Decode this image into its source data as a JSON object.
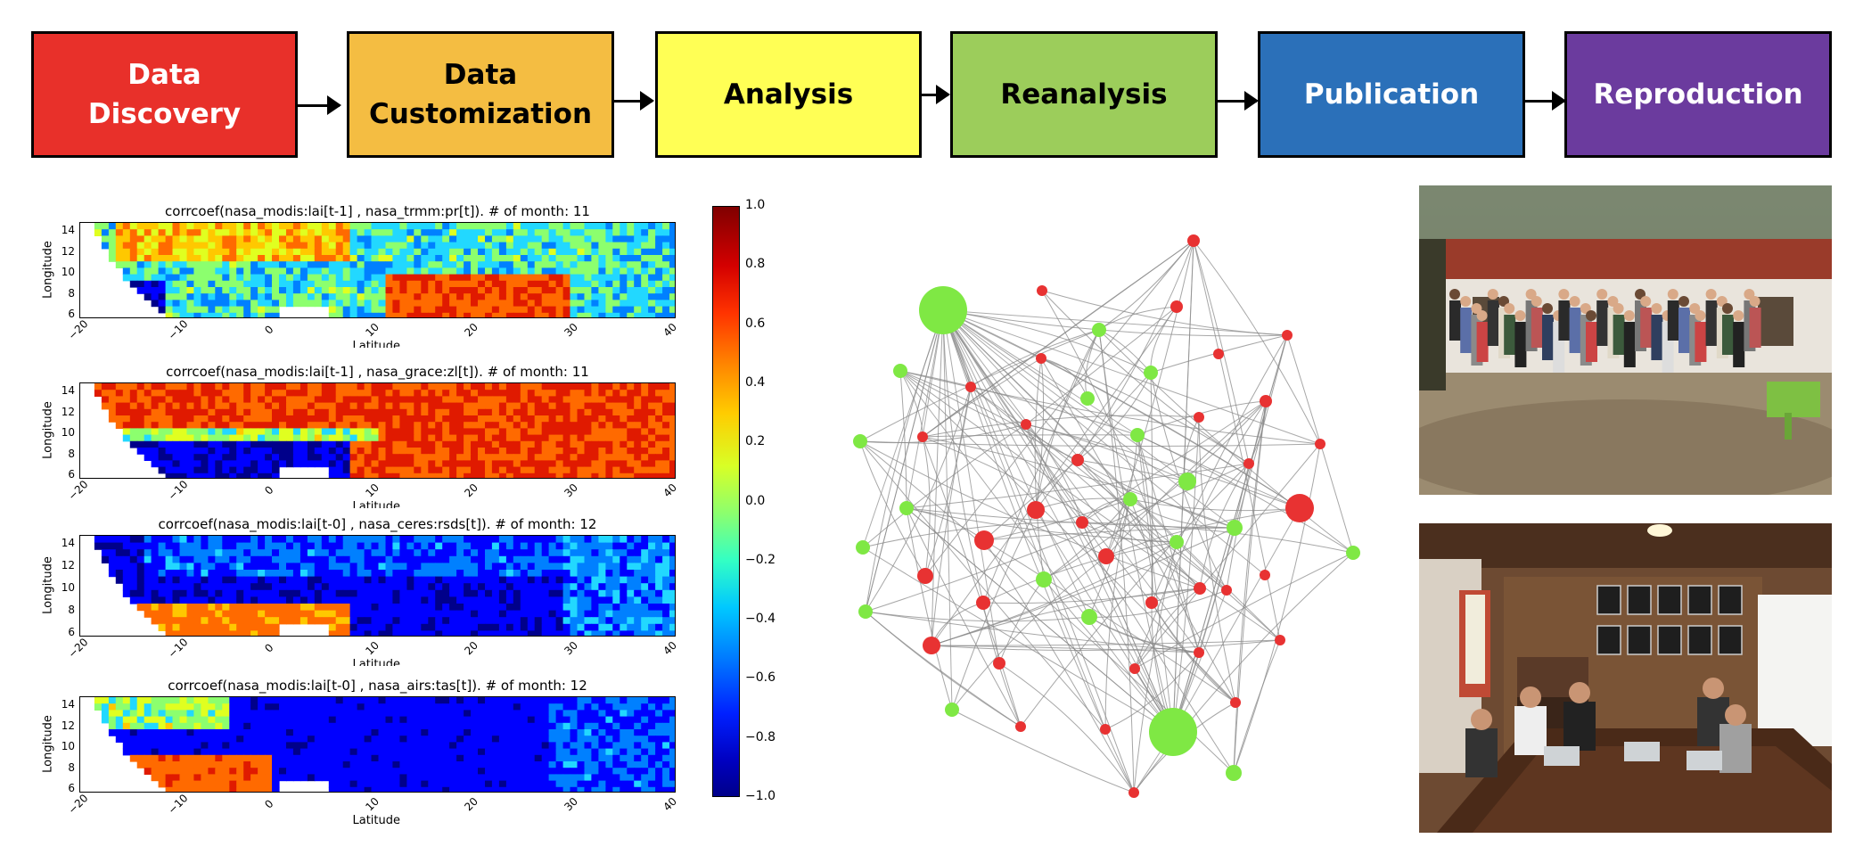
{
  "workflow": {
    "stages": [
      {
        "label": "Data\nDiscovery",
        "color": "#e8302a",
        "text_color": "#ffffff"
      },
      {
        "label": "Data\nCustomization",
        "color": "#f4bd42",
        "text_color": "#000000"
      },
      {
        "label": "Analysis",
        "color": "#ffff55",
        "text_color": "#000000"
      },
      {
        "label": "Reanalysis",
        "color": "#9ccd5b",
        "text_color": "#000000"
      },
      {
        "label": "Publication",
        "color": "#2b70b9",
        "text_color": "#ffffff"
      },
      {
        "label": "Reproduction",
        "color": "#6b3b9e",
        "text_color": "#ffffff"
      }
    ]
  },
  "maps": [
    {
      "title": "corrcoef(nasa_modis:lai[t-1] , nasa_trmm:pr[t]). # of month: 11",
      "ylabel": "Longitude",
      "xlabel": "Latitude",
      "pattern": "trmm"
    },
    {
      "title": "corrcoef(nasa_modis:lai[t-1] , nasa_grace:zl[t]). # of month: 11",
      "ylabel": "Longitude",
      "xlabel": "Latitude",
      "pattern": "grace"
    },
    {
      "title": "corrcoef(nasa_modis:lai[t-0] , nasa_ceres:rsds[t]). # of month: 12",
      "ylabel": "Longitude",
      "xlabel": "Latitude",
      "pattern": "ceres"
    },
    {
      "title": "corrcoef(nasa_modis:lai[t-0] , nasa_airs:tas[t]). # of month: 12",
      "ylabel": "Longitude",
      "xlabel": "Latitude",
      "pattern": "airs"
    }
  ],
  "map_axes": {
    "xticks": [
      "−20",
      "−10",
      "0",
      "10",
      "20",
      "30",
      "40"
    ],
    "yticks": [
      "14",
      "12",
      "10",
      "8",
      "6"
    ]
  },
  "colorbar": {
    "ticks": [
      "1.0",
      "0.8",
      "0.6",
      "0.4",
      "0.2",
      "0.0",
      "−0.2",
      "−0.4",
      "−0.6",
      "−0.8",
      "−1.0"
    ]
  },
  "network": {
    "node_colors": {
      "service": "#7fe844",
      "user": "#e83232"
    }
  },
  "photos": [
    {
      "subject": "group-photo"
    },
    {
      "subject": "meeting-room-photo"
    }
  ]
}
